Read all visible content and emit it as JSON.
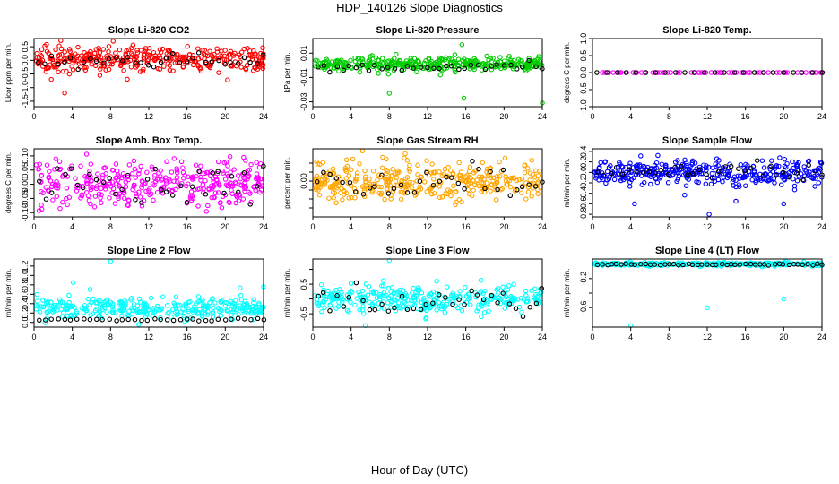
{
  "figure": {
    "suptitle": "HDP_140126  Slope Diagnostics",
    "xlabel": "Hour of Day (UTC)"
  },
  "chart_data": [
    {
      "type": "scatter",
      "title": "Slope Li-820 CO2",
      "ylabel": "Licor ppm per min.",
      "color": "#ff0000",
      "xlim": [
        0,
        24
      ],
      "xticks": [
        0,
        4,
        8,
        12,
        16,
        20,
        24
      ],
      "ylim": [
        -1.7,
        0.8
      ],
      "yticks": [
        -1.5,
        -1.0,
        -0.5,
        0.0,
        0.5
      ],
      "ytick_labels": [
        "-1.5",
        "-1.0",
        "-0.5",
        "0.0",
        "0.5"
      ],
      "series": [
        {
          "name": "points",
          "center": 0.05,
          "spread": 0.22,
          "count": 360,
          "outliers": [
            [
              1.8,
              -0.7
            ],
            [
              3.2,
              -1.2
            ]
          ]
        },
        {
          "name": "black",
          "center": 0.0,
          "spread": 0.12,
          "count": 36
        }
      ]
    },
    {
      "type": "scatter",
      "title": "Slope Li-820 Pressure",
      "ylabel": "kPa per min.",
      "color": "#00cc00",
      "xlim": [
        0,
        24
      ],
      "xticks": [
        0,
        4,
        8,
        12,
        16,
        20,
        24
      ],
      "ylim": [
        -0.034,
        0.022
      ],
      "yticks": [
        -0.03,
        -0.01,
        0.01
      ],
      "ytick_labels": [
        "-0.03",
        "-0.01",
        "0.01"
      ],
      "series": [
        {
          "name": "points",
          "center": 0.001,
          "spread": 0.003,
          "count": 360,
          "outliers": [
            [
              15.6,
              0.017
            ],
            [
              8.0,
              -0.023
            ],
            [
              15.8,
              -0.027
            ],
            [
              24.0,
              -0.031
            ]
          ]
        },
        {
          "name": "black",
          "center": -0.001,
          "spread": 0.002,
          "count": 36
        }
      ]
    },
    {
      "type": "scatter",
      "title": "Slope Li-820 Temp.",
      "ylabel": "degrees C per min.",
      "color": "#ff00ff",
      "xlim": [
        0,
        24
      ],
      "xticks": [
        0,
        4,
        8,
        12,
        16,
        20,
        24
      ],
      "ylim": [
        -1.0,
        1.0
      ],
      "yticks": [
        -1.0,
        -0.5,
        0.0,
        0.5,
        1.0
      ],
      "ytick_labels": [
        "-1.0",
        "-0.5",
        "0.0",
        "0.5",
        "1.0"
      ],
      "series": [
        {
          "name": "points",
          "center": 0.0,
          "spread": 0.0,
          "count": 70
        },
        {
          "name": "black",
          "center": 0.0,
          "spread": 0.0,
          "count": 24
        }
      ]
    },
    {
      "type": "scatter",
      "title": "Slope Amb. Box Temp.",
      "ylabel": "degrees C per min.",
      "color": "#ff00ff",
      "xlim": [
        0,
        24
      ],
      "xticks": [
        0,
        4,
        8,
        12,
        16,
        20,
        24
      ],
      "ylim": [
        -0.115,
        0.125
      ],
      "yticks": [
        -0.1,
        -0.05,
        0.0,
        0.05,
        0.1
      ],
      "ytick_labels": [
        "-0.10",
        "-0.05",
        "0.00",
        "0.05",
        "0.10"
      ],
      "series": [
        {
          "name": "points",
          "center": 0.0,
          "spread": 0.04,
          "count": 360
        },
        {
          "name": "black",
          "center": 0.0,
          "spread": 0.035,
          "count": 36
        }
      ]
    },
    {
      "type": "scatter",
      "title": "Slope Gas Stream RH",
      "ylabel": "percent per min.",
      "color": "#ffa500",
      "xlim": [
        0,
        24
      ],
      "xticks": [
        0,
        4,
        8,
        12,
        16,
        20,
        24
      ],
      "ylim": [
        -0.2,
        0.18
      ],
      "yticks": [
        -0.15,
        -0.1,
        -0.05,
        0.0,
        0.05,
        0.1
      ],
      "ytick_labels": [
        "",
        "",
        "",
        "0.00",
        "",
        ""
      ],
      "series": [
        {
          "name": "points",
          "center": 0.0,
          "spread": 0.055,
          "count": 360
        },
        {
          "name": "black",
          "center": -0.02,
          "spread": 0.05,
          "count": 36
        }
      ]
    },
    {
      "type": "scatter",
      "title": "Slope Sample Flow",
      "ylabel": "ml/min per min.",
      "color": "#0000ff",
      "xlim": [
        0,
        24
      ],
      "xticks": [
        0,
        4,
        8,
        12,
        16,
        20,
        24
      ],
      "ylim": [
        -0.85,
        0.45
      ],
      "yticks": [
        -0.8,
        -0.6,
        -0.4,
        -0.2,
        0.0,
        0.2,
        0.4
      ],
      "ytick_labels": [
        "-0.8",
        "-0.6",
        "-0.4",
        "-0.2",
        "0.0",
        "0.2",
        "0.4"
      ],
      "series": [
        {
          "name": "points",
          "center": 0.0,
          "spread": 0.12,
          "count": 360,
          "outliers": [
            [
              4.4,
              -0.6
            ],
            [
              12.2,
              -0.8
            ],
            [
              15.0,
              -0.55
            ],
            [
              20.0,
              -0.6
            ]
          ]
        },
        {
          "name": "black",
          "center": 0.0,
          "spread": 0.08,
          "count": 36
        }
      ]
    },
    {
      "type": "scatter",
      "title": "Slope Line 2 Flow",
      "ylabel": "ml/min per min.",
      "color": "#00ffff",
      "xlim": [
        0,
        24
      ],
      "xticks": [
        0,
        4,
        8,
        12,
        16,
        20,
        24
      ],
      "ylim": [
        -0.1,
        1.35
      ],
      "yticks": [
        0.0,
        0.2,
        0.4,
        0.6,
        0.8,
        1.0,
        1.2
      ],
      "ytick_labels": [
        "0.0",
        "0.2",
        "0.4",
        "0.6",
        "0.8",
        "1.0",
        "1.2"
      ],
      "series": [
        {
          "name": "points",
          "center": 0.3,
          "spread": 0.11,
          "count": 320,
          "outliers": [
            [
              4.1,
              0.85
            ],
            [
              8.0,
              1.3
            ],
            [
              24.0,
              0.76
            ]
          ]
        },
        {
          "name": "black",
          "center": 0.06,
          "spread": 0.015,
          "count": 36
        }
      ]
    },
    {
      "type": "scatter",
      "title": "Slope Line 3 Flow",
      "ylabel": "ml/min per min.",
      "color": "#00ffff",
      "xlim": [
        0,
        24
      ],
      "xticks": [
        0,
        4,
        8,
        12,
        16,
        20,
        24
      ],
      "ylim": [
        -0.95,
        1.35
      ],
      "yticks": [
        -0.5,
        0.0,
        0.5,
        1.0
      ],
      "ytick_labels": [
        "-0.5",
        "",
        "0.5",
        ""
      ],
      "series": [
        {
          "name": "points",
          "center": 0.0,
          "spread": 0.22,
          "count": 320,
          "outliers": [
            [
              8.0,
              1.3
            ],
            [
              5.5,
              -0.9
            ]
          ]
        },
        {
          "name": "black",
          "center": -0.05,
          "spread": 0.2,
          "count": 36
        }
      ]
    },
    {
      "type": "scatter",
      "title": "Slope Line 4 (LT) Flow",
      "ylabel": "ml/min per min.",
      "color": "#00ffff",
      "xlim": [
        0,
        24
      ],
      "xticks": [
        0,
        4,
        8,
        12,
        16,
        20,
        24
      ],
      "ylim": [
        -0.87,
        0.07
      ],
      "yticks": [
        -0.6,
        -0.4,
        -0.2
      ],
      "ytick_labels": [
        "-0.6",
        "",
        "-0.2"
      ],
      "series": [
        {
          "name": "points",
          "center": 0.0,
          "spread": 0.012,
          "count": 300,
          "outliers": [
            [
              4.0,
              -0.85
            ],
            [
              12.0,
              -0.6
            ],
            [
              20.0,
              -0.48
            ]
          ]
        },
        {
          "name": "black",
          "center": -0.005,
          "spread": 0.006,
          "count": 48
        }
      ]
    }
  ]
}
